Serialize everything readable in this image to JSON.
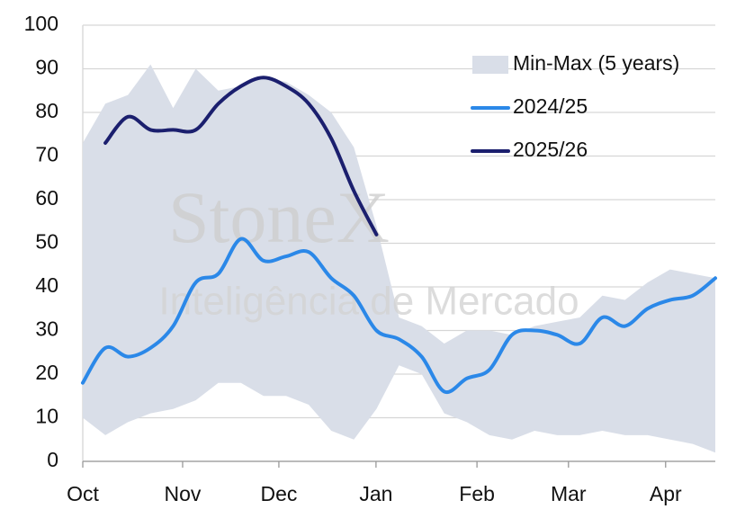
{
  "chart_data": {
    "type": "line",
    "watermark": {
      "title": "StoneX",
      "subtitle": "Inteligência de Mercado"
    },
    "x": [
      0,
      1,
      2,
      3,
      4,
      5,
      6,
      7,
      8,
      9,
      10,
      11,
      12,
      13,
      14,
      15,
      16,
      17,
      18,
      19,
      20,
      21,
      22,
      23,
      24,
      25,
      26,
      27,
      28
    ],
    "xlim": [
      0,
      28
    ],
    "xticks": [
      {
        "value": 0,
        "label": "Oct"
      },
      {
        "value": 4.42,
        "label": "Nov"
      },
      {
        "value": 8.68,
        "label": "Dec"
      },
      {
        "value": 12.98,
        "label": "Jan"
      },
      {
        "value": 17.45,
        "label": "Feb"
      },
      {
        "value": 21.5,
        "label": "Mar"
      },
      {
        "value": 25.8,
        "label": "Apr"
      }
    ],
    "ylim": [
      0,
      100
    ],
    "yticks": [
      0,
      10,
      20,
      30,
      40,
      50,
      60,
      70,
      80,
      90,
      100
    ],
    "grid": true,
    "legend": "top-right",
    "band": {
      "name": "Min-Max (5 years)",
      "color": "#d9dee8",
      "low": [
        10,
        6,
        9,
        11,
        12,
        14,
        18,
        18,
        15,
        15,
        13,
        7,
        5,
        12,
        22,
        20,
        11,
        9,
        6,
        5,
        7,
        6,
        6,
        7,
        6,
        6,
        5,
        4,
        2
      ],
      "high": [
        73,
        82,
        84,
        91,
        81,
        90,
        85,
        86,
        88,
        87,
        84,
        80,
        72,
        54,
        33,
        31,
        27,
        30,
        30,
        29,
        31,
        32,
        33,
        38,
        37,
        41,
        44,
        43,
        42
      ]
    },
    "series": [
      {
        "name": "2024/25",
        "color": "#2b88e8",
        "values": [
          18,
          26,
          24,
          26,
          31,
          41,
          43,
          51,
          46,
          47,
          48,
          42,
          38,
          30,
          28,
          24,
          16,
          19,
          21,
          29,
          30,
          29,
          27,
          33,
          31,
          35,
          37,
          38,
          42
        ]
      },
      {
        "name": "2025/26",
        "color": "#1b1f6e",
        "values": [
          null,
          73,
          79,
          76,
          76,
          76,
          82,
          86,
          88,
          86,
          82,
          74,
          62,
          52,
          null,
          null,
          null,
          null,
          null,
          null,
          null,
          null,
          null,
          null,
          null,
          null,
          null,
          null,
          null
        ]
      }
    ]
  }
}
